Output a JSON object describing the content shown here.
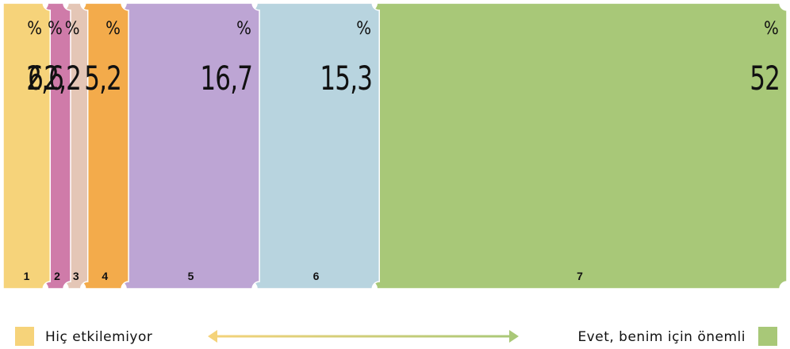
{
  "chart_data": {
    "type": "bar",
    "subtype": "100% stacked (single row)",
    "categories": [
      "1",
      "2",
      "3",
      "4",
      "5",
      "6",
      "7"
    ],
    "values": [
      6,
      2.6,
      2.2,
      5.2,
      16.7,
      15.3,
      52
    ],
    "value_labels": [
      "6",
      "2,6",
      "2,2",
      "5,2",
      "16,7",
      "15,3",
      "52"
    ],
    "unit_symbol": "%",
    "colors": [
      "#F6D37A",
      "#CF7BA9",
      "#E4C6B6",
      "#F3AB4B",
      "#BDA5D4",
      "#B8D4DF",
      "#A8C878"
    ],
    "scale_total": 100,
    "legend": {
      "left_label": "Hiç etkilemiyor",
      "right_label": "Evet, benim için önemli",
      "left_color": "#F6D37A",
      "right_color": "#A8C878",
      "arrow_gradient": [
        "#F6D37A",
        "#A8C878"
      ]
    },
    "title": "",
    "xlabel": "",
    "ylabel": "",
    "grid": false
  }
}
